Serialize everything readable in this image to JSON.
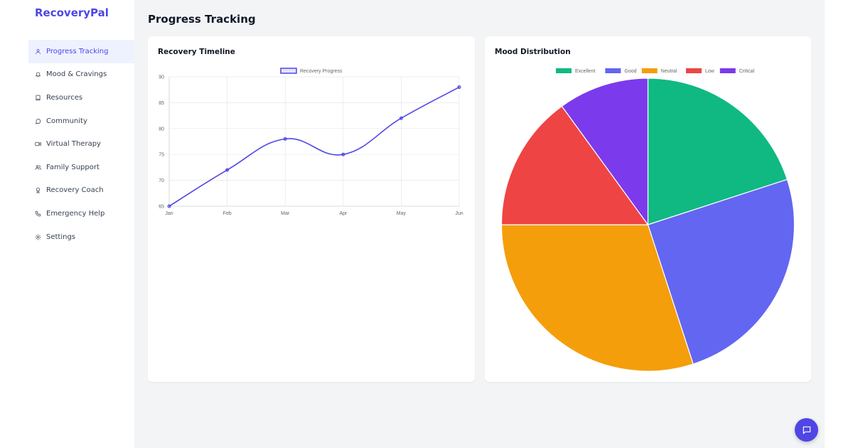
{
  "app": {
    "brand": "RecoveryPal"
  },
  "sidebar": {
    "items": [
      {
        "label": "Progress Tracking",
        "icon": "user-icon",
        "active": true
      },
      {
        "label": "Mood & Cravings",
        "icon": "bell-icon"
      },
      {
        "label": "Resources",
        "icon": "book-icon"
      },
      {
        "label": "Community",
        "icon": "message-circle-icon"
      },
      {
        "label": "Virtual Therapy",
        "icon": "video-icon"
      },
      {
        "label": "Family Support",
        "icon": "users-icon"
      },
      {
        "label": "Recovery Coach",
        "icon": "award-icon"
      },
      {
        "label": "Emergency Help",
        "icon": "phone-icon"
      },
      {
        "label": "Settings",
        "icon": "gear-icon"
      }
    ]
  },
  "main": {
    "page_title": "Progress Tracking",
    "timeline_card": {
      "title": "Recovery Timeline"
    },
    "mood_card": {
      "title": "Mood Distribution"
    }
  },
  "chat_button": {
    "icon": "chat-icon"
  },
  "colors": {
    "accent": "#4f46e5",
    "line": "#4f46e5",
    "excellent": "#10b981",
    "good": "#6366f1",
    "neutral": "#f59e0b",
    "low": "#ef4444",
    "critical": "#7c3aed"
  },
  "chart_data": [
    {
      "type": "line",
      "title": "Recovery Timeline",
      "categories": [
        "Jan",
        "Feb",
        "Mar",
        "Apr",
        "May",
        "Jun"
      ],
      "series": [
        {
          "name": "Recovery Progress",
          "values": [
            65,
            72,
            78,
            75,
            82,
            88
          ]
        }
      ],
      "ylim": [
        65,
        90
      ],
      "yticks": [
        65,
        70,
        75,
        80,
        85,
        90
      ],
      "ytick_labels": [
        "65",
        "70",
        "75",
        "80",
        "85",
        "90"
      ],
      "grid": true,
      "legend": "top-center"
    },
    {
      "type": "pie",
      "title": "Mood Distribution",
      "labels": [
        "Excellent",
        "Good",
        "Neutral",
        "Low",
        "Critical"
      ],
      "values": [
        20,
        25,
        30,
        15,
        10
      ],
      "legend": "top-center"
    }
  ]
}
